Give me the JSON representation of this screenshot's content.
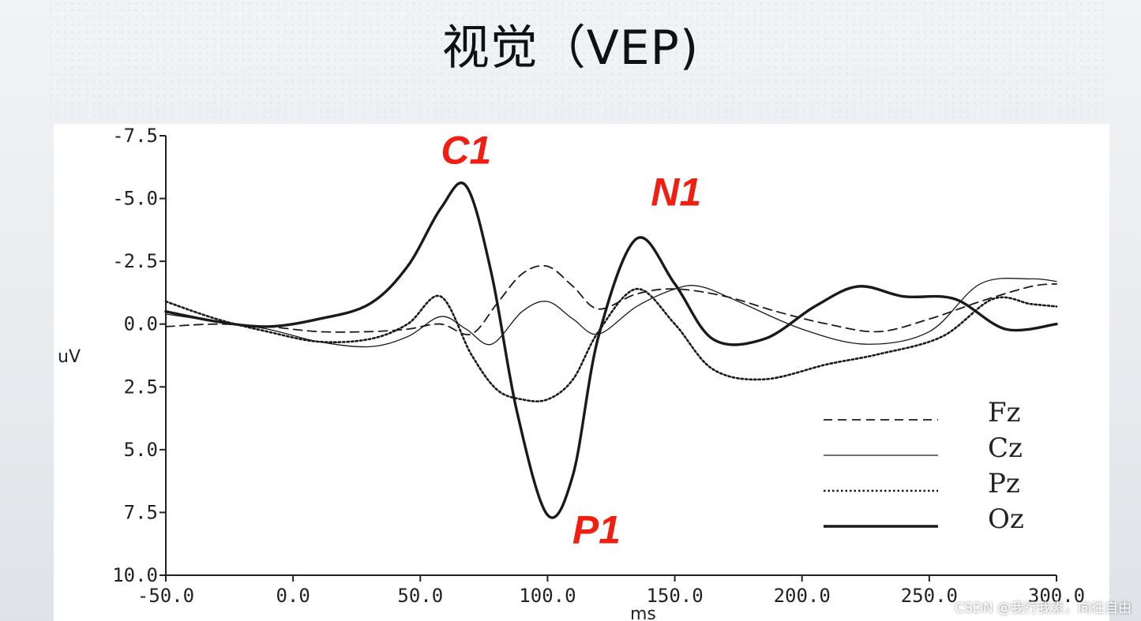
{
  "slide": {
    "title": "视觉（VEP)"
  },
  "watermark": "CSDN @我行我素，向往自由",
  "chart_data": {
    "type": "line",
    "xlabel": "ms",
    "ylabel": "uV",
    "xlim": [
      -50,
      300
    ],
    "ylim": [
      -7.5,
      10
    ],
    "y_inverted": true,
    "x_ticks": [
      -50,
      0,
      50,
      100,
      150,
      200,
      250,
      300
    ],
    "x_tick_labels": [
      "-50.0",
      "0.0",
      "50.0",
      "100.0",
      "150.0",
      "200.0",
      "250.0",
      "300.0"
    ],
    "y_ticks": [
      -7.5,
      -5,
      -2.5,
      0,
      2.5,
      5,
      7.5,
      10
    ],
    "y_tick_labels": [
      "-7.5",
      "-5.0",
      "-2.5",
      "0.0",
      "2.5",
      "5.0",
      "7.5",
      "10.0"
    ],
    "grid": false,
    "legend_position": "bottom-right",
    "series": [
      {
        "name": "Fz",
        "style": "dashed",
        "x": [
          -50,
          -30,
          -10,
          10,
          30,
          45,
          58,
          70,
          80,
          90,
          100,
          110,
          120,
          135,
          150,
          170,
          190,
          210,
          230,
          250,
          270,
          290,
          300
        ],
        "y": [
          0.1,
          0.0,
          0.1,
          0.3,
          0.3,
          0.2,
          0.0,
          0.4,
          -0.8,
          -2.0,
          -2.3,
          -1.5,
          -0.6,
          -1.2,
          -1.4,
          -1.1,
          -0.5,
          0.0,
          0.3,
          -0.2,
          -0.9,
          -1.5,
          -1.6
        ]
      },
      {
        "name": "Cz",
        "style": "solid-thin",
        "x": [
          -50,
          -30,
          -10,
          10,
          30,
          45,
          58,
          68,
          78,
          90,
          100,
          110,
          120,
          135,
          150,
          160,
          175,
          200,
          225,
          250,
          270,
          290,
          300
        ],
        "y": [
          -0.4,
          -0.1,
          0.2,
          0.7,
          0.9,
          0.5,
          -0.3,
          0.2,
          0.8,
          -0.5,
          -0.9,
          -0.2,
          0.4,
          -0.7,
          -1.4,
          -1.5,
          -0.9,
          0.2,
          0.8,
          0.3,
          -1.6,
          -1.8,
          -1.7
        ]
      },
      {
        "name": "Pz",
        "style": "dotted",
        "x": [
          -50,
          -30,
          -10,
          10,
          30,
          45,
          58,
          70,
          80,
          90,
          100,
          110,
          120,
          135,
          150,
          165,
          185,
          210,
          230,
          255,
          275,
          290,
          300
        ],
        "y": [
          -0.9,
          -0.2,
          0.3,
          0.7,
          0.6,
          0.0,
          -1.1,
          1.2,
          2.6,
          3.0,
          3.0,
          2.2,
          0.3,
          -1.4,
          0.0,
          1.8,
          2.2,
          1.6,
          1.2,
          0.5,
          -1.0,
          -0.8,
          -0.7
        ]
      },
      {
        "name": "Oz",
        "style": "solid-bold",
        "x": [
          -50,
          -30,
          -10,
          10,
          30,
          45,
          58,
          68,
          78,
          88,
          100,
          110,
          120,
          135,
          150,
          165,
          185,
          205,
          222,
          240,
          260,
          280,
          300
        ],
        "y": [
          -0.5,
          -0.1,
          0.1,
          -0.2,
          -0.8,
          -2.3,
          -4.6,
          -5.5,
          -2.0,
          3.5,
          7.6,
          6.0,
          0.5,
          -3.4,
          -1.6,
          0.6,
          0.6,
          -0.7,
          -1.5,
          -1.1,
          -1.0,
          0.2,
          0.0
        ]
      }
    ],
    "annotations": [
      {
        "text": "C1",
        "x": 68,
        "y": -5.5
      },
      {
        "text": "N1",
        "x": 135,
        "y": -3.4
      },
      {
        "text": "P1",
        "x": 100,
        "y": 7.6
      }
    ]
  }
}
